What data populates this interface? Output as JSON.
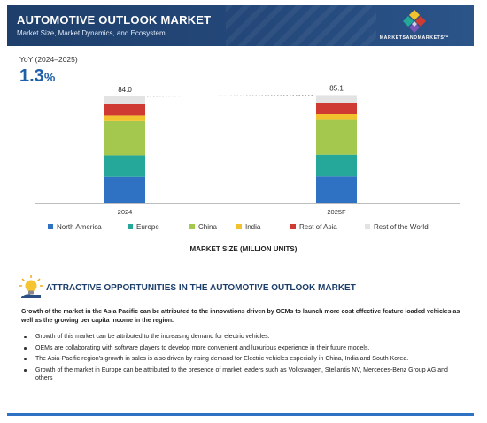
{
  "header": {
    "title": "AUTOMOTIVE OUTLOOK MARKET",
    "subtitle": "Market Size, Market Dynamics, and Ecosystem",
    "logo_text": "MARKETSANDMARKETS™"
  },
  "yoy": {
    "label": "YoY (2024–2025)",
    "value": "1.3",
    "unit": "%"
  },
  "colors": {
    "north_america": "#2f72c4",
    "europe": "#25a89a",
    "china": "#a4c74d",
    "india": "#f2c12e",
    "rest_of_asia": "#cf3a32",
    "rest_of_world": "#e3e3e3"
  },
  "chart_data": {
    "type": "bar",
    "stacked": true,
    "categories": [
      "2024",
      "2025F"
    ],
    "totals": [
      "84.0",
      "85.1"
    ],
    "xlabel": "MARKET SIZE (MILLION UNITS)",
    "ylim": [
      0,
      84.0
    ],
    "legend_position": "bottom",
    "series": [
      {
        "name": "North America",
        "color": "#2f72c4",
        "values": [
          20.5,
          20.8
        ]
      },
      {
        "name": "Europe",
        "color": "#25a89a",
        "values": [
          17.0,
          17.2
        ]
      },
      {
        "name": "China",
        "color": "#a4c74d",
        "values": [
          27.0,
          27.4
        ]
      },
      {
        "name": "India",
        "color": "#f2c12e",
        "values": [
          4.5,
          4.6
        ]
      },
      {
        "name": "Rest of Asia",
        "color": "#cf3a32",
        "values": [
          9.0,
          9.1
        ]
      },
      {
        "name": "Rest of the World",
        "color": "#e3e3e3",
        "values": [
          6.0,
          6.0
        ]
      }
    ]
  },
  "opportunities": {
    "icon": "lightbulb-icon",
    "heading": "ATTRACTIVE OPPORTUNITIES IN THE AUTOMOTIVE OUTLOOK MARKET",
    "intro": "Growth of the market in the Asia Pacific can be attributed to the innovations driven by OEMs to launch more cost effective feature loaded vehicles as well as the growing per capita income in the region.",
    "bullets": [
      "Growth of this market can be attributed to the increasing demand for electric vehicles.",
      "OEMs are collaborating with software players to develop more convenient and luxurious experience in their future models.",
      "The Asia-Pacific region's growth in sales is also driven by rising demand for Electric vehicles especially in China, India and South Korea.",
      "Growth of the market in Europe can be attributed to the presence of market leaders such as Volkswagen, Stellantis NV, Mercedes-Benz Group AG and others"
    ]
  }
}
